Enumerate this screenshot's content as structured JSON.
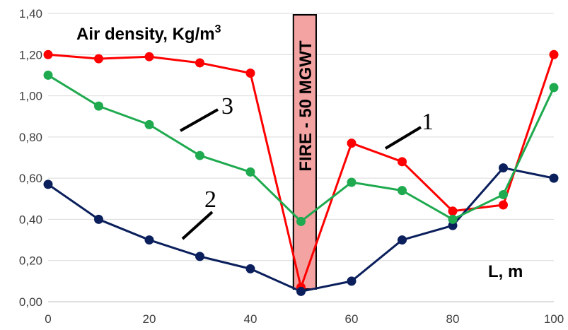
{
  "chart_data": {
    "type": "line",
    "title": "Air density, Kg/m",
    "title_sup": "3",
    "xlabel": "L, m",
    "ylabel": "",
    "x": [
      0,
      10,
      20,
      30,
      40,
      50,
      60,
      70,
      80,
      90,
      100
    ],
    "xlim": [
      0,
      100
    ],
    "ylim": [
      0,
      1.4
    ],
    "xticks": [
      "0",
      "20",
      "40",
      "60",
      "80",
      "100"
    ],
    "yticks": [
      "0,00",
      "0,20",
      "0,40",
      "0,60",
      "0,80",
      "1,00",
      "1,20",
      "1,40"
    ],
    "grid": "horizontal",
    "legend": "none",
    "series": [
      {
        "label": "1",
        "color": "#ff0000",
        "values": [
          1.2,
          1.18,
          1.19,
          1.16,
          1.11,
          0.07,
          0.77,
          0.68,
          0.44,
          0.47,
          1.2
        ]
      },
      {
        "label": "2",
        "color": "#0a1f5c",
        "values": [
          0.57,
          0.4,
          0.3,
          0.22,
          0.16,
          0.05,
          0.1,
          0.3,
          0.37,
          0.65,
          0.6
        ]
      },
      {
        "label": "3",
        "color": "#1faa4f",
        "values": [
          1.1,
          0.95,
          0.86,
          0.71,
          0.63,
          0.39,
          0.58,
          0.54,
          0.4,
          0.52,
          1.04
        ]
      }
    ],
    "fire_zone": {
      "label": "FIRE - 50 MGWT",
      "x_from": 48.5,
      "x_to": 53.0,
      "color": "#f4a3a3"
    },
    "series_labels": [
      {
        "text": "1",
        "series": 0
      },
      {
        "text": "2",
        "series": 1
      },
      {
        "text": "3",
        "series": 2
      }
    ]
  }
}
